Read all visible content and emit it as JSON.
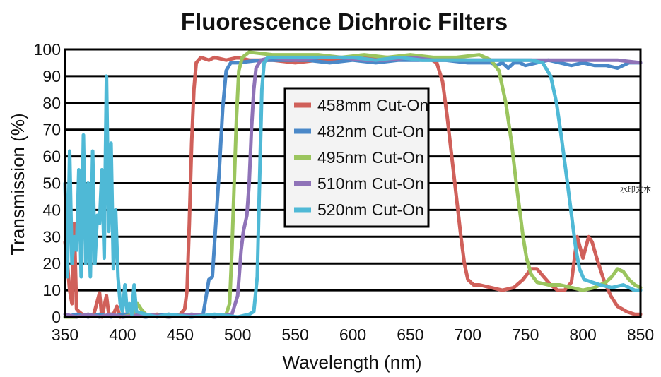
{
  "chart_data": {
    "type": "line",
    "title": "Fluorescence Dichroic Filters",
    "xlabel": "Wavelength (nm)",
    "ylabel": "Transmission (%)",
    "xlim": [
      350,
      850
    ],
    "ylim": [
      0,
      100
    ],
    "xticks": [
      350,
      400,
      450,
      500,
      550,
      600,
      650,
      700,
      750,
      800,
      850
    ],
    "yticks": [
      0,
      10,
      20,
      30,
      40,
      50,
      60,
      70,
      80,
      90,
      100
    ],
    "grid": "horizontal",
    "legend_position": "upper-center",
    "series": [
      {
        "name": "458mm Cut-On",
        "color": "#d0605a",
        "points": [
          [
            350,
            28
          ],
          [
            352,
            20
          ],
          [
            354,
            10
          ],
          [
            356,
            5
          ],
          [
            358,
            35
          ],
          [
            360,
            3
          ],
          [
            362,
            2
          ],
          [
            365,
            1
          ],
          [
            370,
            0
          ],
          [
            375,
            1
          ],
          [
            380,
            9
          ],
          [
            382,
            0
          ],
          [
            386,
            8
          ],
          [
            388,
            1
          ],
          [
            392,
            1
          ],
          [
            395,
            4
          ],
          [
            398,
            0
          ],
          [
            400,
            1
          ],
          [
            410,
            1
          ],
          [
            420,
            0
          ],
          [
            430,
            1
          ],
          [
            440,
            0
          ],
          [
            450,
            1
          ],
          [
            454,
            3
          ],
          [
            456,
            10
          ],
          [
            458,
            35
          ],
          [
            460,
            65
          ],
          [
            462,
            85
          ],
          [
            464,
            95
          ],
          [
            468,
            97
          ],
          [
            475,
            96
          ],
          [
            480,
            97
          ],
          [
            490,
            96
          ],
          [
            500,
            97
          ],
          [
            510,
            96
          ],
          [
            530,
            96
          ],
          [
            550,
            95
          ],
          [
            570,
            96
          ],
          [
            590,
            96
          ],
          [
            610,
            97
          ],
          [
            630,
            97
          ],
          [
            650,
            97
          ],
          [
            665,
            97
          ],
          [
            673,
            95
          ],
          [
            678,
            88
          ],
          [
            682,
            75
          ],
          [
            686,
            60
          ],
          [
            690,
            45
          ],
          [
            694,
            30
          ],
          [
            697,
            20
          ],
          [
            700,
            14
          ],
          [
            705,
            12
          ],
          [
            710,
            12
          ],
          [
            720,
            11
          ],
          [
            730,
            10
          ],
          [
            740,
            11
          ],
          [
            748,
            14
          ],
          [
            755,
            18
          ],
          [
            760,
            18
          ],
          [
            766,
            15
          ],
          [
            772,
            12
          ],
          [
            778,
            10
          ],
          [
            784,
            10
          ],
          [
            790,
            13
          ],
          [
            795,
            30
          ],
          [
            800,
            22
          ],
          [
            805,
            30
          ],
          [
            808,
            28
          ],
          [
            812,
            22
          ],
          [
            818,
            14
          ],
          [
            824,
            8
          ],
          [
            830,
            4
          ],
          [
            838,
            2
          ],
          [
            845,
            1
          ],
          [
            850,
            1
          ]
        ]
      },
      {
        "name": "482nm Cut-On",
        "color": "#4a88c8",
        "points": [
          [
            350,
            0
          ],
          [
            360,
            1
          ],
          [
            370,
            0
          ],
          [
            380,
            1
          ],
          [
            390,
            0
          ],
          [
            400,
            1
          ],
          [
            420,
            0
          ],
          [
            440,
            1
          ],
          [
            460,
            0
          ],
          [
            470,
            1
          ],
          [
            475,
            14
          ],
          [
            478,
            15
          ],
          [
            481,
            35
          ],
          [
            484,
            55
          ],
          [
            487,
            78
          ],
          [
            490,
            92
          ],
          [
            494,
            95
          ],
          [
            500,
            95
          ],
          [
            520,
            96
          ],
          [
            540,
            96
          ],
          [
            560,
            96
          ],
          [
            580,
            95
          ],
          [
            600,
            96
          ],
          [
            620,
            95
          ],
          [
            640,
            96
          ],
          [
            660,
            96
          ],
          [
            680,
            96
          ],
          [
            700,
            95
          ],
          [
            710,
            95
          ],
          [
            720,
            95
          ],
          [
            725,
            94
          ],
          [
            730,
            95
          ],
          [
            735,
            93
          ],
          [
            740,
            95
          ],
          [
            745,
            95
          ],
          [
            750,
            94
          ],
          [
            760,
            95
          ],
          [
            770,
            96
          ],
          [
            780,
            95
          ],
          [
            790,
            94
          ],
          [
            800,
            95
          ],
          [
            810,
            94
          ],
          [
            820,
            94
          ],
          [
            830,
            93
          ],
          [
            840,
            95
          ],
          [
            850,
            95
          ]
        ]
      },
      {
        "name": "495nm Cut-On",
        "color": "#9bc55e",
        "points": [
          [
            350,
            0
          ],
          [
            360,
            0
          ],
          [
            370,
            1
          ],
          [
            380,
            0
          ],
          [
            390,
            1
          ],
          [
            400,
            0
          ],
          [
            410,
            1
          ],
          [
            413,
            5
          ],
          [
            416,
            3
          ],
          [
            420,
            1
          ],
          [
            440,
            0
          ],
          [
            460,
            1
          ],
          [
            480,
            0
          ],
          [
            490,
            1
          ],
          [
            493,
            5
          ],
          [
            495,
            25
          ],
          [
            497,
            50
          ],
          [
            499,
            75
          ],
          [
            501,
            92
          ],
          [
            504,
            97
          ],
          [
            510,
            99
          ],
          [
            530,
            98
          ],
          [
            550,
            98
          ],
          [
            570,
            98
          ],
          [
            590,
            97
          ],
          [
            610,
            98
          ],
          [
            630,
            97
          ],
          [
            650,
            98
          ],
          [
            670,
            97
          ],
          [
            690,
            97
          ],
          [
            710,
            98
          ],
          [
            720,
            96
          ],
          [
            727,
            92
          ],
          [
            733,
            80
          ],
          [
            738,
            65
          ],
          [
            742,
            50
          ],
          [
            745,
            40
          ],
          [
            748,
            30
          ],
          [
            751,
            22
          ],
          [
            755,
            16
          ],
          [
            760,
            13
          ],
          [
            770,
            12
          ],
          [
            780,
            12
          ],
          [
            790,
            11
          ],
          [
            800,
            10
          ],
          [
            810,
            11
          ],
          [
            820,
            13
          ],
          [
            825,
            15
          ],
          [
            830,
            18
          ],
          [
            835,
            17
          ],
          [
            840,
            14
          ],
          [
            845,
            12
          ],
          [
            850,
            11
          ]
        ]
      },
      {
        "name": "510nm Cut-On",
        "color": "#8f73b8",
        "points": [
          [
            350,
            1
          ],
          [
            360,
            0
          ],
          [
            370,
            1
          ],
          [
            380,
            0
          ],
          [
            390,
            1
          ],
          [
            400,
            0
          ],
          [
            420,
            1
          ],
          [
            440,
            0
          ],
          [
            460,
            1
          ],
          [
            480,
            0
          ],
          [
            495,
            1
          ],
          [
            500,
            8
          ],
          [
            503,
            25
          ],
          [
            505,
            32
          ],
          [
            508,
            38
          ],
          [
            510,
            50
          ],
          [
            512,
            70
          ],
          [
            514,
            85
          ],
          [
            516,
            93
          ],
          [
            520,
            96
          ],
          [
            530,
            97
          ],
          [
            550,
            96
          ],
          [
            570,
            97
          ],
          [
            590,
            97
          ],
          [
            610,
            96
          ],
          [
            630,
            96
          ],
          [
            650,
            97
          ],
          [
            670,
            96
          ],
          [
            690,
            96
          ],
          [
            710,
            96
          ],
          [
            730,
            96
          ],
          [
            750,
            96
          ],
          [
            770,
            96
          ],
          [
            790,
            96
          ],
          [
            810,
            96
          ],
          [
            830,
            96
          ],
          [
            850,
            95
          ]
        ]
      },
      {
        "name": "520nm Cut-On",
        "color": "#4fb9d6",
        "points": [
          [
            350,
            50
          ],
          [
            352,
            15
          ],
          [
            354,
            62
          ],
          [
            356,
            20
          ],
          [
            358,
            30
          ],
          [
            360,
            25
          ],
          [
            362,
            55
          ],
          [
            364,
            15
          ],
          [
            366,
            68
          ],
          [
            368,
            20
          ],
          [
            370,
            50
          ],
          [
            372,
            15
          ],
          [
            374,
            62
          ],
          [
            376,
            20
          ],
          [
            378,
            38
          ],
          [
            380,
            35
          ],
          [
            382,
            55
          ],
          [
            384,
            22
          ],
          [
            386,
            90
          ],
          [
            388,
            32
          ],
          [
            390,
            65
          ],
          [
            392,
            18
          ],
          [
            394,
            40
          ],
          [
            396,
            15
          ],
          [
            398,
            5
          ],
          [
            400,
            2
          ],
          [
            402,
            12
          ],
          [
            404,
            2
          ],
          [
            406,
            5
          ],
          [
            408,
            1
          ],
          [
            410,
            12
          ],
          [
            412,
            2
          ],
          [
            420,
            1
          ],
          [
            430,
            0
          ],
          [
            440,
            1
          ],
          [
            460,
            0
          ],
          [
            480,
            1
          ],
          [
            500,
            0
          ],
          [
            510,
            1
          ],
          [
            514,
            2
          ],
          [
            517,
            15
          ],
          [
            519,
            50
          ],
          [
            521,
            85
          ],
          [
            523,
            95
          ],
          [
            526,
            97
          ],
          [
            540,
            97
          ],
          [
            560,
            97
          ],
          [
            580,
            97
          ],
          [
            600,
            97
          ],
          [
            620,
            96
          ],
          [
            640,
            97
          ],
          [
            660,
            96
          ],
          [
            680,
            96
          ],
          [
            700,
            96
          ],
          [
            720,
            96
          ],
          [
            740,
            96
          ],
          [
            755,
            96
          ],
          [
            765,
            95
          ],
          [
            772,
            90
          ],
          [
            777,
            80
          ],
          [
            781,
            68
          ],
          [
            785,
            55
          ],
          [
            788,
            45
          ],
          [
            791,
            35
          ],
          [
            794,
            25
          ],
          [
            797,
            18
          ],
          [
            801,
            14
          ],
          [
            808,
            13
          ],
          [
            815,
            12
          ],
          [
            825,
            11
          ],
          [
            835,
            12
          ],
          [
            845,
            10
          ],
          [
            850,
            10
          ]
        ]
      }
    ],
    "watermark": "水印文本"
  }
}
